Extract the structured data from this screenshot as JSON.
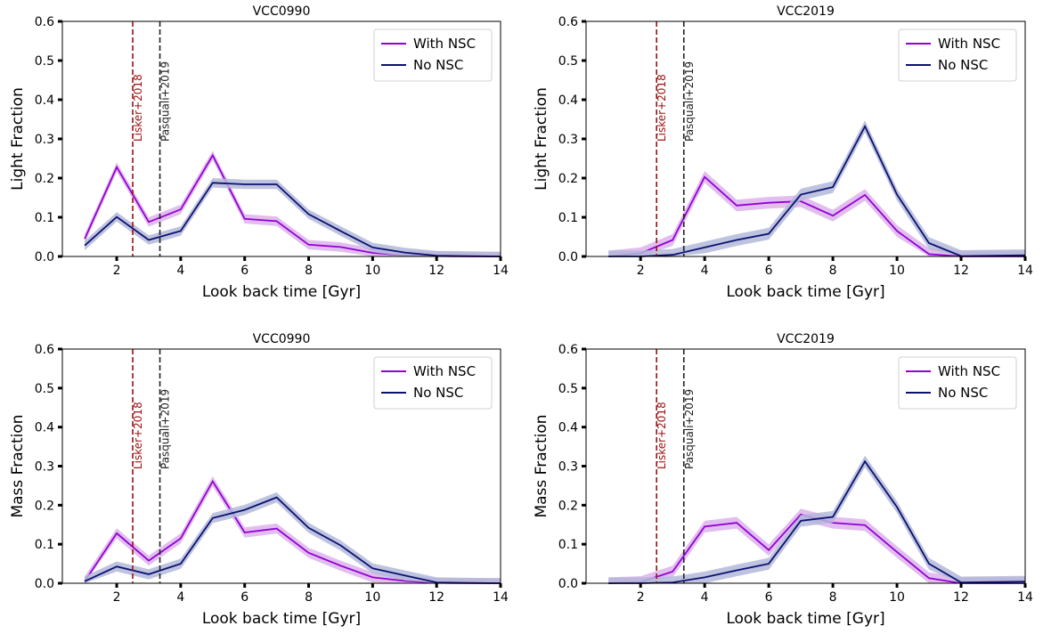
{
  "colors": {
    "with_nsc": "#9400d3",
    "with_nsc_band": "#dcb3ec",
    "no_nsc": "#0b1170",
    "no_nsc_band": "#b3b8d9",
    "lisker": "#9b0f0f",
    "pasquali": "#222222"
  },
  "chart_data": [
    {
      "type": "line",
      "title": "VCC0990",
      "xlabel": "Look back time [Gyr]",
      "ylabel": "Light Fraction",
      "xlim": [
        0.3,
        14
      ],
      "ylim": [
        0,
        0.6
      ],
      "xticks": [
        "2",
        "4",
        "6",
        "8",
        "10",
        "12",
        "14"
      ],
      "yticks": [
        "0.0",
        "0.1",
        "0.2",
        "0.3",
        "0.4",
        "0.5",
        "0.6"
      ],
      "vlines": [
        {
          "x": 2.5,
          "label": "Lisker+2018",
          "style": "dashed",
          "color": "lisker"
        },
        {
          "x": 3.35,
          "label": "Pasquali+2019",
          "style": "dashed",
          "color": "pasquali"
        }
      ],
      "legend": "top-right",
      "x": [
        1,
        2,
        3,
        4,
        5,
        6,
        7,
        8,
        9,
        10,
        11,
        12,
        13,
        14
      ],
      "series": [
        {
          "name": "With NSC",
          "color": "with_nsc",
          "band": 0.012,
          "values": [
            0.045,
            0.228,
            0.088,
            0.12,
            0.258,
            0.096,
            0.09,
            0.03,
            0.024,
            0.009,
            0.003,
            0.001,
            0.0,
            0.0
          ]
        },
        {
          "name": "No NSC",
          "color": "no_nsc",
          "band": 0.012,
          "values": [
            0.028,
            0.101,
            0.042,
            0.065,
            0.188,
            0.184,
            0.184,
            0.108,
            0.065,
            0.023,
            0.01,
            0.002,
            0.001,
            0.0
          ]
        }
      ]
    },
    {
      "type": "line",
      "title": "VCC2019",
      "xlabel": "Look back time [Gyr]",
      "ylabel": "Light Fraction",
      "xlim": [
        0.3,
        14
      ],
      "ylim": [
        0,
        0.6
      ],
      "xticks": [
        "2",
        "4",
        "6",
        "8",
        "10",
        "12",
        "14"
      ],
      "yticks": [
        "0.0",
        "0.1",
        "0.2",
        "0.3",
        "0.4",
        "0.5",
        "0.6"
      ],
      "vlines": [
        {
          "x": 2.5,
          "label": "Lisker+2018",
          "style": "dashed",
          "color": "lisker"
        },
        {
          "x": 3.35,
          "label": "Pasquali+2019",
          "style": "dashed",
          "color": "pasquali"
        }
      ],
      "legend": "top-right",
      "x": [
        1,
        2,
        3,
        4,
        5,
        6,
        7,
        8,
        9,
        10,
        11,
        12,
        13,
        14
      ],
      "series": [
        {
          "name": "With NSC",
          "color": "with_nsc",
          "band": 0.015,
          "values": [
            0.0,
            0.008,
            0.042,
            0.203,
            0.13,
            0.137,
            0.141,
            0.104,
            0.157,
            0.065,
            0.006,
            0.0,
            0.0,
            0.0
          ]
        },
        {
          "name": "No NSC",
          "color": "no_nsc",
          "band": 0.015,
          "values": [
            0.0,
            0.0,
            0.004,
            0.023,
            0.042,
            0.058,
            0.158,
            0.177,
            0.332,
            0.158,
            0.034,
            0.001,
            0.002,
            0.003
          ]
        }
      ]
    },
    {
      "type": "line",
      "title": "VCC0990",
      "xlabel": "Look back time [Gyr]",
      "ylabel": "Mass Fraction",
      "xlim": [
        0.3,
        14
      ],
      "ylim": [
        0,
        0.6
      ],
      "xticks": [
        "2",
        "4",
        "6",
        "8",
        "10",
        "12",
        "14"
      ],
      "yticks": [
        "0.0",
        "0.1",
        "0.2",
        "0.3",
        "0.4",
        "0.5",
        "0.6"
      ],
      "vlines": [
        {
          "x": 2.5,
          "label": "Lisker+2018",
          "style": "dashed",
          "color": "lisker"
        },
        {
          "x": 3.35,
          "label": "Pasquali+2019",
          "style": "dashed",
          "color": "pasquali"
        }
      ],
      "legend": "top-right",
      "x": [
        1,
        2,
        3,
        4,
        5,
        6,
        7,
        8,
        9,
        10,
        11,
        12,
        13,
        14
      ],
      "series": [
        {
          "name": "With NSC",
          "color": "with_nsc",
          "band": 0.013,
          "values": [
            0.005,
            0.128,
            0.058,
            0.115,
            0.261,
            0.13,
            0.14,
            0.078,
            0.045,
            0.015,
            0.006,
            0.001,
            0.0,
            0.0
          ]
        },
        {
          "name": "No NSC",
          "color": "no_nsc",
          "band": 0.013,
          "values": [
            0.005,
            0.043,
            0.023,
            0.05,
            0.167,
            0.188,
            0.22,
            0.142,
            0.097,
            0.038,
            0.02,
            0.002,
            0.001,
            0.0
          ]
        }
      ]
    },
    {
      "type": "line",
      "title": "VCC2019",
      "xlabel": "Look back time [Gyr]",
      "ylabel": "Mass Fraction",
      "xlim": [
        0.3,
        14
      ],
      "ylim": [
        0,
        0.6
      ],
      "xticks": [
        "2",
        "4",
        "6",
        "8",
        "10",
        "12",
        "14"
      ],
      "yticks": [
        "0.0",
        "0.1",
        "0.2",
        "0.3",
        "0.4",
        "0.5",
        "0.6"
      ],
      "vlines": [
        {
          "x": 2.5,
          "label": "Lisker+2018",
          "style": "dashed",
          "color": "lisker"
        },
        {
          "x": 3.35,
          "label": "Pasquali+2019",
          "style": "dashed",
          "color": "pasquali"
        }
      ],
      "legend": "top-right",
      "x": [
        1,
        2,
        3,
        4,
        5,
        6,
        7,
        8,
        9,
        10,
        11,
        12,
        13,
        14
      ],
      "series": [
        {
          "name": "With NSC",
          "color": "with_nsc",
          "band": 0.015,
          "values": [
            0.0,
            0.003,
            0.03,
            0.145,
            0.155,
            0.085,
            0.176,
            0.155,
            0.149,
            0.08,
            0.013,
            0.0,
            0.0,
            0.0
          ]
        },
        {
          "name": "No NSC",
          "color": "no_nsc",
          "band": 0.015,
          "values": [
            0.0,
            0.0,
            0.002,
            0.015,
            0.033,
            0.05,
            0.16,
            0.17,
            0.312,
            0.195,
            0.05,
            0.002,
            0.003,
            0.004
          ]
        }
      ]
    }
  ]
}
